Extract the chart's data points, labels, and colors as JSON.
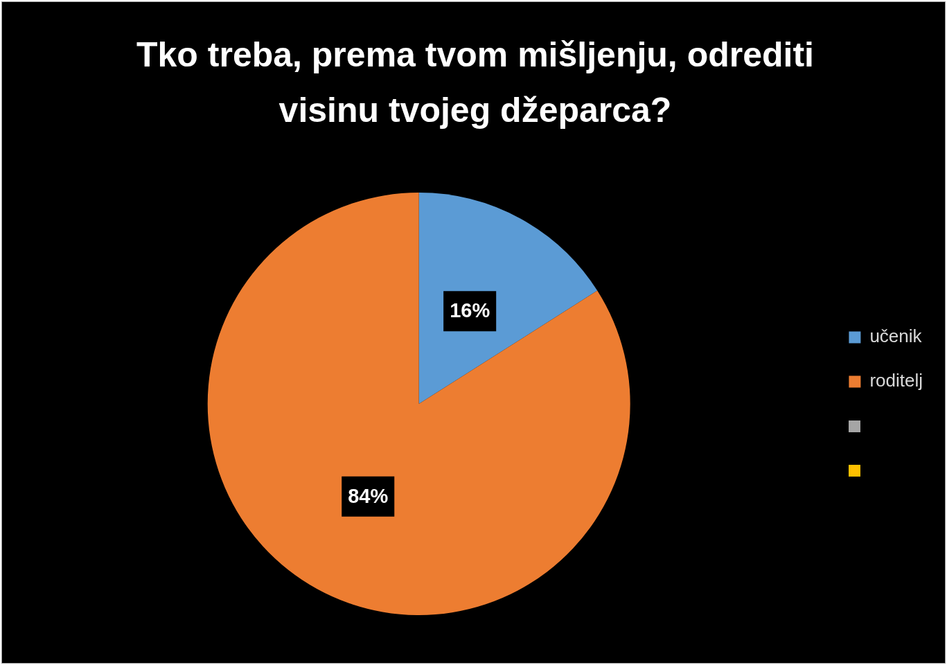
{
  "chart_data": {
    "type": "pie",
    "title": "Tko treba, prema tvom mišljenju, odrediti visinu tvojeg džeparca?",
    "categories": [
      "učenik",
      "roditelj",
      null,
      null
    ],
    "values": [
      16,
      84,
      0,
      0
    ],
    "colors": [
      "#5b9bd5",
      "#ed7d31",
      "#a5a5a5",
      "#ffc000"
    ],
    "value_labels": [
      "16%",
      "84%",
      null,
      null
    ],
    "legend": "right"
  }
}
